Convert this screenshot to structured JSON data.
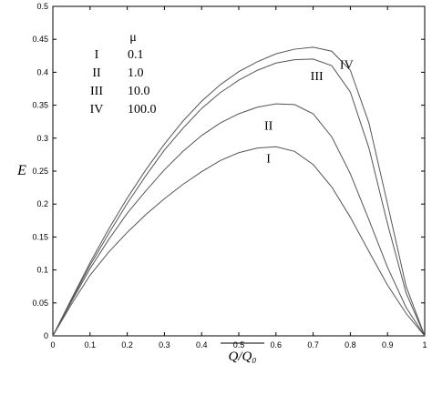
{
  "chart_data": {
    "type": "line",
    "xlabel": "Q/Q₀",
    "ylabel": "E",
    "xlim": [
      0,
      1
    ],
    "ylim": [
      0,
      0.5
    ],
    "x_ticks": [
      "0",
      "0.1",
      "0.2",
      "0.3",
      "0.4",
      "0.5",
      "0.6",
      "0.7",
      "0.8",
      "0.9",
      "1"
    ],
    "y_ticks": [
      "0",
      "0.05",
      "0.1",
      "0.15",
      "0.2",
      "0.25",
      "0.3",
      "0.35",
      "0.4",
      "0.45",
      "0.5"
    ],
    "grid": false,
    "legend": {
      "header": "μ",
      "entries": [
        {
          "label": "I",
          "value": "0.1"
        },
        {
          "label": "II",
          "value": "1.0"
        },
        {
          "label": "III",
          "value": "10.0"
        },
        {
          "label": "IV",
          "value": "100.0"
        }
      ]
    },
    "series": [
      {
        "name": "I",
        "label_at": [
          0.58,
          0.27
        ],
        "x": [
          0,
          0.05,
          0.1,
          0.15,
          0.2,
          0.25,
          0.3,
          0.35,
          0.4,
          0.45,
          0.5,
          0.55,
          0.6,
          0.65,
          0.7,
          0.75,
          0.8,
          0.85,
          0.9,
          0.95,
          1.0
        ],
        "y": [
          0,
          0.048,
          0.092,
          0.127,
          0.157,
          0.184,
          0.208,
          0.23,
          0.249,
          0.266,
          0.278,
          0.285,
          0.287,
          0.28,
          0.26,
          0.226,
          0.18,
          0.128,
          0.077,
          0.034,
          0
        ]
      },
      {
        "name": "II",
        "label_at": [
          0.58,
          0.32
        ],
        "x": [
          0,
          0.05,
          0.1,
          0.15,
          0.2,
          0.25,
          0.3,
          0.35,
          0.4,
          0.45,
          0.5,
          0.55,
          0.6,
          0.65,
          0.7,
          0.75,
          0.8,
          0.85,
          0.9,
          0.95,
          1.0
        ],
        "y": [
          0,
          0.052,
          0.102,
          0.146,
          0.186,
          0.22,
          0.252,
          0.28,
          0.304,
          0.323,
          0.337,
          0.347,
          0.352,
          0.351,
          0.337,
          0.302,
          0.246,
          0.176,
          0.104,
          0.043,
          0
        ]
      },
      {
        "name": "III",
        "label_at": [
          0.71,
          0.395
        ],
        "x": [
          0,
          0.05,
          0.1,
          0.15,
          0.2,
          0.25,
          0.3,
          0.35,
          0.4,
          0.45,
          0.5,
          0.55,
          0.6,
          0.65,
          0.7,
          0.75,
          0.8,
          0.85,
          0.9,
          0.95,
          1.0
        ],
        "y": [
          0,
          0.054,
          0.107,
          0.155,
          0.201,
          0.243,
          0.282,
          0.315,
          0.345,
          0.369,
          0.388,
          0.403,
          0.414,
          0.419,
          0.42,
          0.41,
          0.37,
          0.285,
          0.17,
          0.065,
          0
        ]
      },
      {
        "name": "IV",
        "label_at": [
          0.79,
          0.412
        ],
        "x": [
          0,
          0.05,
          0.1,
          0.15,
          0.2,
          0.25,
          0.3,
          0.35,
          0.4,
          0.45,
          0.5,
          0.55,
          0.6,
          0.65,
          0.7,
          0.75,
          0.8,
          0.85,
          0.9,
          0.95,
          1.0
        ],
        "y": [
          0,
          0.056,
          0.111,
          0.162,
          0.209,
          0.252,
          0.291,
          0.326,
          0.356,
          0.381,
          0.401,
          0.416,
          0.428,
          0.435,
          0.438,
          0.432,
          0.403,
          0.323,
          0.2,
          0.075,
          0
        ]
      }
    ]
  }
}
